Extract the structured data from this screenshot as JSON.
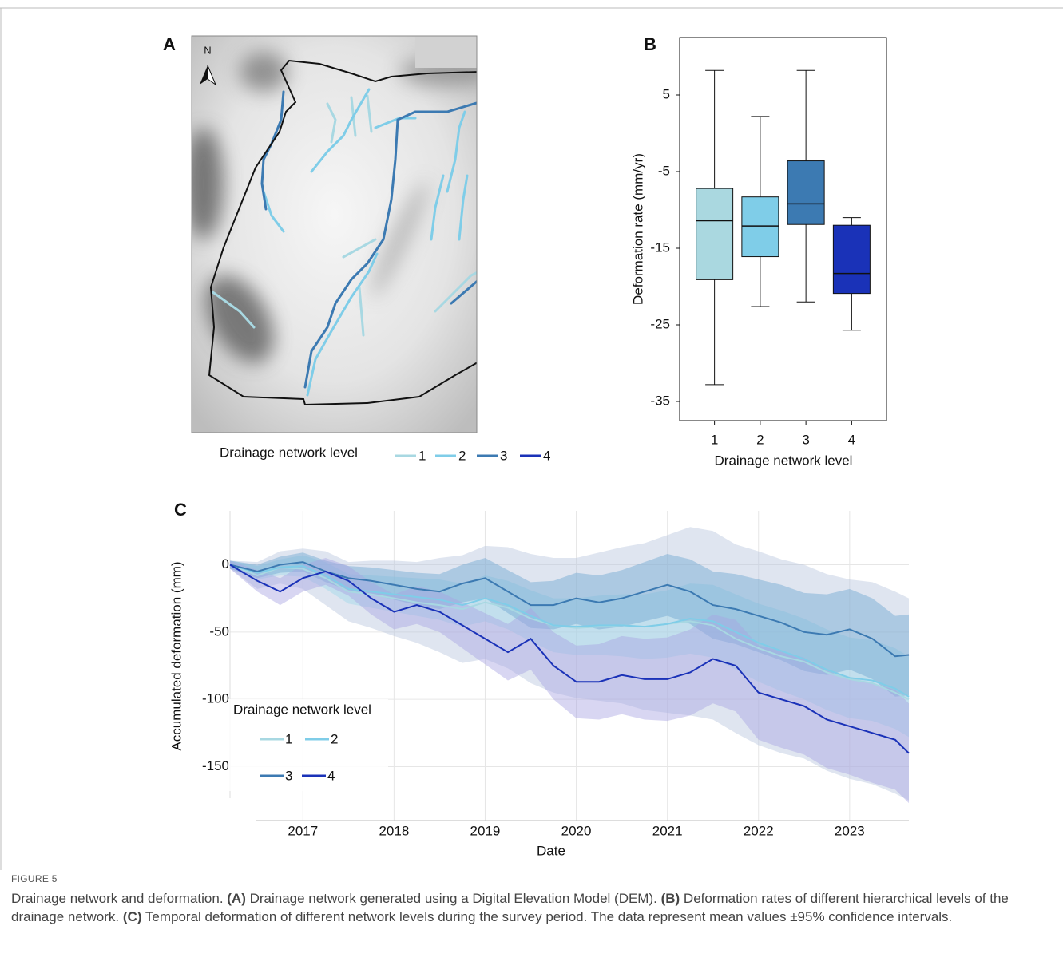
{
  "map": {
    "panel": "A",
    "north": "N",
    "legend_title": "Drainage network level",
    "legend": [
      {
        "name": "1",
        "color": "#a8d8e2"
      },
      {
        "name": "2",
        "color": "#7fcde8"
      },
      {
        "name": "3",
        "color": "#3c7ab2"
      },
      {
        "name": "4",
        "color": "#1a32b8"
      }
    ]
  },
  "chart_data": [
    {
      "type": "box",
      "panel": "B",
      "ylabel": "Deformation rate (mm/yr)",
      "xlabel": "Drainage network level",
      "categories": [
        "1",
        "2",
        "3",
        "4"
      ],
      "ylim": [
        -37.5,
        12.5
      ],
      "yticks": [
        5,
        -5,
        -15,
        -25,
        -35
      ],
      "boxes": [
        {
          "color": "#aad8e0",
          "whishi": 8.2,
          "q3": -7.2,
          "median": -11.4,
          "q1": -19.1,
          "whislo": -32.8
        },
        {
          "color": "#7fcde8",
          "whishi": 2.2,
          "q3": -8.3,
          "median": -12.1,
          "q1": -16.1,
          "whislo": -22.6
        },
        {
          "color": "#3c7ab2",
          "whishi": 8.2,
          "q3": -3.6,
          "median": -9.2,
          "q1": -11.9,
          "whislo": -22.0
        },
        {
          "color": "#1a32b8",
          "whishi": -11.0,
          "q3": -12.0,
          "median": -18.3,
          "q1": -20.9,
          "whislo": -25.7
        }
      ]
    },
    {
      "type": "line",
      "panel": "C",
      "ylabel": "Accumulated deformation (mm)",
      "xlabel": "Date",
      "legend_title": "Drainage network level",
      "grid": true,
      "band_opacity": 0.45,
      "xlim": [
        2016.2,
        2023.65
      ],
      "xticks": [
        2017,
        2018,
        2019,
        2020,
        2021,
        2022,
        2023
      ],
      "ylim": [
        -190,
        40
      ],
      "yticks": [
        0,
        -50,
        -100,
        -150
      ],
      "x": [
        2016.2,
        2016.5,
        2016.75,
        2017,
        2017.25,
        2017.5,
        2017.75,
        2018,
        2018.25,
        2018.5,
        2018.75,
        2019,
        2019.25,
        2019.5,
        2019.75,
        2020,
        2020.25,
        2020.5,
        2020.75,
        2021,
        2021.25,
        2021.5,
        2021.75,
        2022,
        2022.25,
        2022.5,
        2022.75,
        2023,
        2023.25,
        2023.5,
        2023.65
      ],
      "series": [
        {
          "name": "1",
          "color": "#a8d8e2",
          "band_color": "#b9c5dd",
          "values": [
            0,
            -8,
            -2,
            -3,
            -10,
            -20,
            -22,
            -25,
            -28,
            -30,
            -33,
            -28,
            -32,
            -40,
            -45,
            -47,
            -46,
            -45,
            -46,
            -44,
            -42,
            -45,
            -55,
            -62,
            -68,
            -72,
            -80,
            -85,
            -88,
            -95,
            -100
          ],
          "upper": [
            3,
            2,
            10,
            12,
            10,
            2,
            3,
            3,
            2,
            5,
            7,
            14,
            13,
            8,
            5,
            5,
            9,
            13,
            16,
            22,
            28,
            25,
            15,
            10,
            4,
            0,
            -7,
            -11,
            -13,
            -20,
            -25
          ],
          "lower": [
            -3,
            -18,
            -14,
            -18,
            -30,
            -42,
            -47,
            -53,
            -58,
            -65,
            -73,
            -70,
            -77,
            -88,
            -95,
            -99,
            -101,
            -103,
            -108,
            -110,
            -112,
            -115,
            -125,
            -134,
            -140,
            -144,
            -153,
            -159,
            -163,
            -170,
            -175
          ]
        },
        {
          "name": "2",
          "color": "#7fcde8",
          "band_color": "#9fd6e8",
          "values": [
            0,
            -6,
            -2,
            -1,
            -8,
            -18,
            -20,
            -22,
            -24,
            -26,
            -30,
            -25,
            -30,
            -38,
            -45,
            -46,
            -45,
            -45,
            -46,
            -44,
            -40,
            -42,
            -50,
            -58,
            -64,
            -70,
            -78,
            -84,
            -86,
            -92,
            -98
          ],
          "upper": [
            3,
            -1,
            4,
            7,
            2,
            -7,
            -8,
            -9,
            -10,
            -11,
            -14,
            -8,
            -12,
            -19,
            -25,
            -25,
            -23,
            -22,
            -22,
            -19,
            -14,
            -15,
            -22,
            -29,
            -34,
            -40,
            -48,
            -54,
            -56,
            -62,
            -68
          ],
          "lower": [
            -3,
            -11,
            -8,
            -9,
            -18,
            -29,
            -32,
            -35,
            -38,
            -41,
            -46,
            -42,
            -48,
            -57,
            -65,
            -67,
            -67,
            -68,
            -70,
            -69,
            -66,
            -69,
            -78,
            -87,
            -94,
            -100,
            -108,
            -114,
            -116,
            -122,
            -128
          ]
        },
        {
          "name": "3",
          "color": "#3c7ab2",
          "band_color": "#6fa6d0",
          "values": [
            0,
            -5,
            0,
            2,
            -5,
            -10,
            -12,
            -15,
            -18,
            -20,
            -14,
            -10,
            -20,
            -30,
            -30,
            -25,
            -28,
            -25,
            -20,
            -15,
            -20,
            -30,
            -33,
            -38,
            -43,
            -50,
            -52,
            -48,
            -55,
            -68,
            -67
          ],
          "upper": [
            3,
            0,
            6,
            9,
            3,
            -1,
            -2,
            -4,
            -6,
            -7,
            0,
            5,
            -4,
            -13,
            -12,
            -6,
            -8,
            -4,
            2,
            8,
            4,
            -5,
            -7,
            -11,
            -15,
            -21,
            -22,
            -18,
            -25,
            -38,
            -37
          ],
          "lower": [
            -3,
            -10,
            -6,
            -5,
            -13,
            -19,
            -22,
            -26,
            -30,
            -33,
            -28,
            -25,
            -36,
            -47,
            -48,
            -44,
            -48,
            -46,
            -42,
            -38,
            -44,
            -55,
            -59,
            -65,
            -71,
            -79,
            -82,
            -78,
            -85,
            -98,
            -97
          ]
        },
        {
          "name": "4",
          "color": "#1a32b8",
          "band_color": "#a9a3e3",
          "values": [
            0,
            -12,
            -20,
            -10,
            -5,
            -12,
            -25,
            -35,
            -30,
            -35,
            -45,
            -55,
            -65,
            -55,
            -75,
            -87,
            -87,
            -82,
            -85,
            -85,
            -80,
            -70,
            -75,
            -95,
            -100,
            -105,
            -115,
            -120,
            -125,
            -130,
            -140
          ],
          "upper": [
            3,
            -4,
            -10,
            0,
            5,
            -1,
            -13,
            -22,
            -16,
            -20,
            -28,
            -36,
            -44,
            -32,
            -50,
            -60,
            -59,
            -53,
            -55,
            -54,
            -48,
            -37,
            -41,
            -60,
            -64,
            -69,
            -79,
            -84,
            -88,
            -93,
            -103
          ],
          "lower": [
            -3,
            -20,
            -30,
            -20,
            -15,
            -23,
            -37,
            -48,
            -44,
            -50,
            -62,
            -74,
            -86,
            -78,
            -100,
            -114,
            -115,
            -111,
            -115,
            -116,
            -112,
            -103,
            -109,
            -130,
            -136,
            -141,
            -151,
            -156,
            -162,
            -167,
            -177
          ]
        }
      ]
    }
  ],
  "caption": {
    "figure": "FIGURE 5",
    "segments": [
      {
        "text": "Drainage network and deformation. ",
        "bold": false
      },
      {
        "text": "(A)",
        "bold": true
      },
      {
        "text": " Drainage network generated using a Digital Elevation Model (DEM). ",
        "bold": false
      },
      {
        "text": "(B)",
        "bold": true
      },
      {
        "text": " Deformation rates of different hierarchical levels of the drainage network. ",
        "bold": false
      },
      {
        "text": "(C)",
        "bold": true
      },
      {
        "text": " Temporal deformation of different network levels during the survey period. The data represent mean values ±95% confidence intervals.",
        "bold": false
      }
    ]
  }
}
